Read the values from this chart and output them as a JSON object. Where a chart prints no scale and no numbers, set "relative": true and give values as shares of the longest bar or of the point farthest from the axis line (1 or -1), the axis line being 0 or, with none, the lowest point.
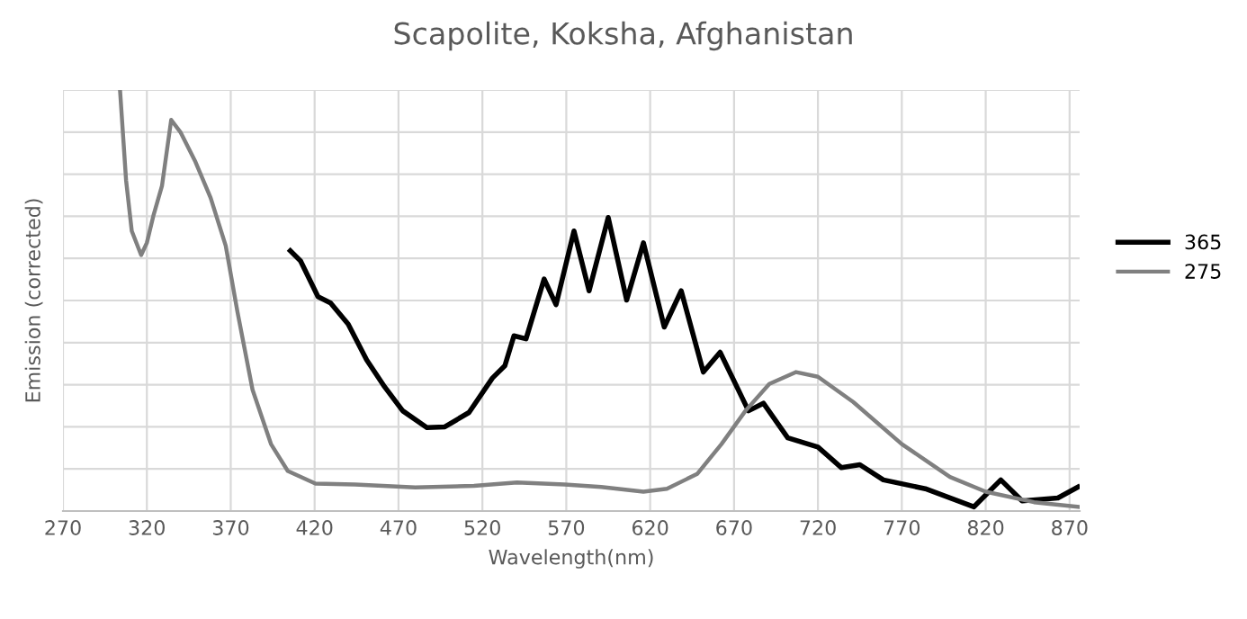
{
  "chart_data": {
    "type": "line",
    "title": "Scapolite, Koksha, Afghanistan",
    "xlabel": "Wavelength(nm)",
    "ylabel": "Emission (corrected)",
    "relative": true,
    "xlim": [
      270,
      876
    ],
    "xticks": [
      270,
      320,
      370,
      420,
      470,
      520,
      570,
      620,
      670,
      720,
      770,
      820,
      870
    ],
    "grid": true,
    "legend": "right",
    "marker": "none",
    "line_style": "solid",
    "series": [
      {
        "name": "365",
        "color": "#000000",
        "x": [
          405.5,
          411.6,
          422,
          429.5,
          440,
          451,
          461.7,
          472.5,
          486.9,
          497.6,
          512,
          526,
          533.4,
          538.8,
          546,
          556.8,
          563.9,
          574.6,
          583.6,
          595,
          606,
          616,
          628.4,
          638.5,
          651.7,
          661.7,
          678.6,
          687.5,
          702,
          720,
          734,
          745,
          759,
          784,
          813,
          829,
          841.7,
          863,
          875
        ],
        "values": [
          0.618,
          0.594,
          0.509,
          0.494,
          0.444,
          0.359,
          0.295,
          0.238,
          0.198,
          0.2,
          0.234,
          0.316,
          0.345,
          0.416,
          0.409,
          0.551,
          0.49,
          0.665,
          0.523,
          0.697,
          0.501,
          0.637,
          0.437,
          0.523,
          0.33,
          0.377,
          0.238,
          0.256,
          0.174,
          0.152,
          0.103,
          0.11,
          0.074,
          0.053,
          0.01,
          0.074,
          0.024,
          0.031,
          0.057
        ]
      },
      {
        "name": "275",
        "color": "#808080",
        "x": [
          304,
          307.6,
          311,
          316.6,
          320,
          323.8,
          329,
          334.5,
          340,
          349,
          358,
          367,
          374,
          383,
          394,
          404,
          420.5,
          444,
          480,
          515,
          540.6,
          569,
          590.8,
          616,
          630,
          648,
          662.5,
          676.8,
          691,
          707,
          720,
          741,
          770,
          798.7,
          820,
          848.8,
          875
        ],
        "values": [
          1.0,
          0.786,
          0.665,
          0.608,
          0.637,
          0.7,
          0.772,
          0.929,
          0.9,
          0.829,
          0.744,
          0.63,
          0.473,
          0.288,
          0.159,
          0.095,
          0.065,
          0.063,
          0.056,
          0.06,
          0.068,
          0.063,
          0.057,
          0.046,
          0.053,
          0.088,
          0.159,
          0.238,
          0.302,
          0.33,
          0.319,
          0.259,
          0.159,
          0.081,
          0.046,
          0.021,
          0.01
        ]
      }
    ]
  }
}
